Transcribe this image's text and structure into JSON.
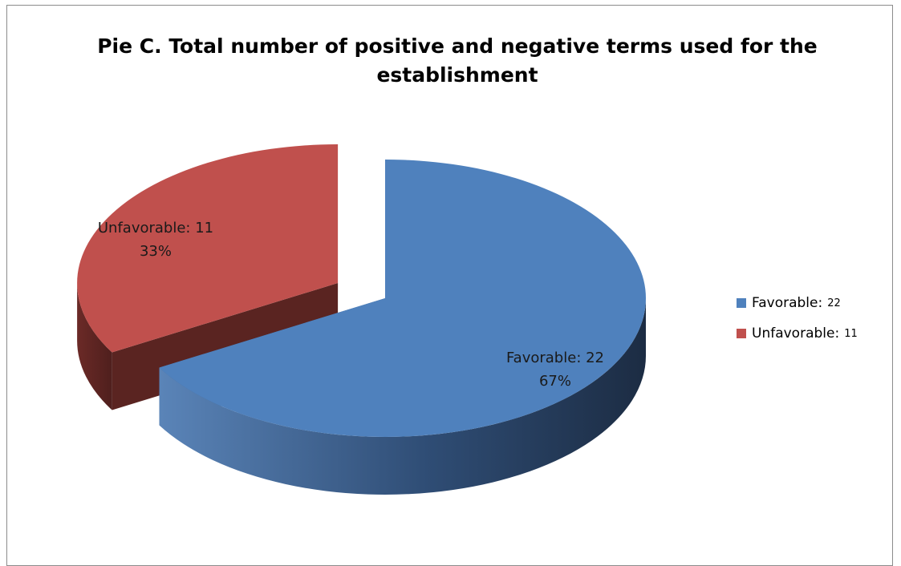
{
  "chart_data": {
    "type": "pie",
    "title_lines": [
      "Pie C. Total number of positive and negative terms used for the",
      "establishment"
    ],
    "slices": [
      {
        "label": "Favorable:",
        "value": 22,
        "percent": "67%",
        "data_label_line1": "Favorable: 22",
        "data_label_line2": "67%",
        "color": "#4f81bd",
        "side_color_dark": "#1f2f48",
        "side_color_light": "#3f6595"
      },
      {
        "label": "Unfavorable:",
        "value": 11,
        "percent": "33%",
        "data_label_line1": "Unfavorable: 11",
        "data_label_line2": "33%",
        "color": "#c0504d",
        "side_color_dark": "#5a2421",
        "side_color_light": "#7a302d"
      }
    ],
    "legend_position": "right",
    "exploded_slice": "Unfavorable:",
    "style": "3d"
  }
}
